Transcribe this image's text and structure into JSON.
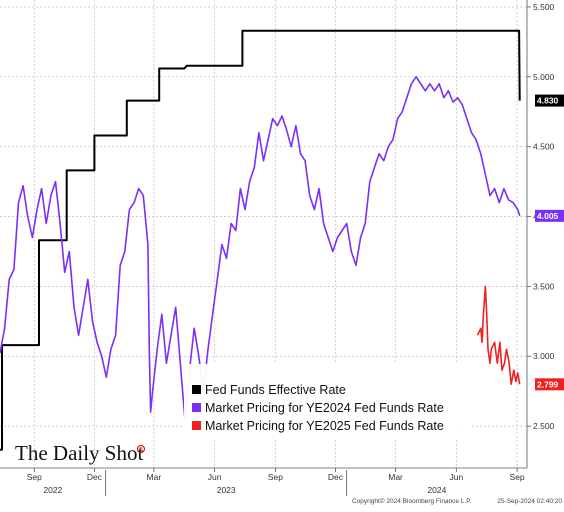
{
  "chart_data": {
    "type": "line",
    "title": "",
    "xlabel": "",
    "ylabel": "",
    "ylim": [
      2.2,
      5.55
    ],
    "y_ticks": [
      "2.500",
      "3.000",
      "3.500",
      "4.000",
      "4.500",
      "5.000",
      "5.500"
    ],
    "x_ticks": [
      {
        "label": "Sep",
        "date": "2022-09-15"
      },
      {
        "label": "Dec",
        "date": "2022-12-15"
      },
      {
        "label": "Mar",
        "date": "2023-03-15"
      },
      {
        "label": "Jun",
        "date": "2023-06-15"
      },
      {
        "label": "Sep",
        "date": "2023-09-15"
      },
      {
        "label": "Dec",
        "date": "2023-12-15"
      },
      {
        "label": "Mar",
        "date": "2024-03-15"
      },
      {
        "label": "Jun",
        "date": "2024-06-15"
      },
      {
        "label": "Sep",
        "date": "2024-09-15"
      }
    ],
    "x_years": [
      "2022",
      "2023",
      "2024"
    ],
    "grid": true,
    "legend_position": "bottom-center",
    "series": [
      {
        "name": "Fed Funds Effective Rate",
        "color": "#000000",
        "last_value": "4.830",
        "points": [
          [
            "2022-07-25",
            2.33
          ],
          [
            "2022-07-28",
            2.33
          ],
          [
            "2022-07-28",
            3.08
          ],
          [
            "2022-09-22",
            3.08
          ],
          [
            "2022-09-22",
            3.83
          ],
          [
            "2022-11-03",
            3.83
          ],
          [
            "2022-11-03",
            4.33
          ],
          [
            "2022-12-15",
            4.33
          ],
          [
            "2022-12-15",
            4.58
          ],
          [
            "2023-02-02",
            4.58
          ],
          [
            "2023-02-02",
            4.83
          ],
          [
            "2023-03-23",
            4.83
          ],
          [
            "2023-03-23",
            5.06
          ],
          [
            "2023-04-30",
            5.06
          ],
          [
            "2023-05-04",
            5.08
          ],
          [
            "2023-07-27",
            5.08
          ],
          [
            "2023-07-27",
            5.33
          ],
          [
            "2024-09-18",
            5.33
          ],
          [
            "2024-09-19",
            4.83
          ]
        ]
      },
      {
        "name": "Market Pricing for YE2024 Fed Funds Rate",
        "color": "#7B2FF7",
        "last_value": "4.005",
        "points": [
          [
            "2022-07-25",
            3.02
          ],
          [
            "2022-08-01",
            3.2
          ],
          [
            "2022-08-08",
            3.55
          ],
          [
            "2022-08-15",
            3.62
          ],
          [
            "2022-08-22",
            4.1
          ],
          [
            "2022-08-29",
            4.22
          ],
          [
            "2022-09-05",
            4.0
          ],
          [
            "2022-09-12",
            3.85
          ],
          [
            "2022-09-19",
            4.05
          ],
          [
            "2022-09-26",
            4.2
          ],
          [
            "2022-10-03",
            3.95
          ],
          [
            "2022-10-10",
            4.15
          ],
          [
            "2022-10-17",
            4.25
          ],
          [
            "2022-10-24",
            3.95
          ],
          [
            "2022-10-31",
            3.6
          ],
          [
            "2022-11-07",
            3.75
          ],
          [
            "2022-11-14",
            3.35
          ],
          [
            "2022-11-21",
            3.15
          ],
          [
            "2022-11-28",
            3.35
          ],
          [
            "2022-12-05",
            3.55
          ],
          [
            "2022-12-12",
            3.25
          ],
          [
            "2022-12-19",
            3.1
          ],
          [
            "2022-12-26",
            3.0
          ],
          [
            "2023-01-02",
            2.85
          ],
          [
            "2023-01-09",
            3.05
          ],
          [
            "2023-01-16",
            3.15
          ],
          [
            "2023-01-23",
            3.65
          ],
          [
            "2023-01-30",
            3.75
          ],
          [
            "2023-02-06",
            4.05
          ],
          [
            "2023-02-13",
            4.1
          ],
          [
            "2023-02-20",
            4.2
          ],
          [
            "2023-02-27",
            4.15
          ],
          [
            "2023-03-06",
            3.8
          ],
          [
            "2023-03-08",
            3.05
          ],
          [
            "2023-03-10",
            2.6
          ],
          [
            "2023-03-13",
            2.75
          ],
          [
            "2023-03-20",
            3.05
          ],
          [
            "2023-03-27",
            3.3
          ],
          [
            "2023-04-03",
            2.95
          ],
          [
            "2023-04-10",
            3.15
          ],
          [
            "2023-04-17",
            3.35
          ],
          [
            "2023-04-24",
            2.95
          ],
          [
            "2023-05-01",
            2.55
          ],
          [
            "2023-05-08",
            2.9
          ],
          [
            "2023-05-15",
            3.2
          ],
          [
            "2023-05-22",
            3.0
          ],
          [
            "2023-05-29",
            2.75
          ],
          [
            "2023-06-05",
            3.05
          ],
          [
            "2023-06-12",
            3.3
          ],
          [
            "2023-06-19",
            3.55
          ],
          [
            "2023-06-26",
            3.8
          ],
          [
            "2023-07-03",
            3.7
          ],
          [
            "2023-07-10",
            3.95
          ],
          [
            "2023-07-17",
            3.9
          ],
          [
            "2023-07-24",
            4.2
          ],
          [
            "2023-07-31",
            4.05
          ],
          [
            "2023-08-07",
            4.25
          ],
          [
            "2023-08-14",
            4.35
          ],
          [
            "2023-08-21",
            4.6
          ],
          [
            "2023-08-28",
            4.4
          ],
          [
            "2023-09-04",
            4.55
          ],
          [
            "2023-09-11",
            4.7
          ],
          [
            "2023-09-18",
            4.65
          ],
          [
            "2023-09-25",
            4.72
          ],
          [
            "2023-10-02",
            4.62
          ],
          [
            "2023-10-09",
            4.5
          ],
          [
            "2023-10-16",
            4.65
          ],
          [
            "2023-10-23",
            4.45
          ],
          [
            "2023-10-30",
            4.4
          ],
          [
            "2023-11-06",
            4.15
          ],
          [
            "2023-11-13",
            4.05
          ],
          [
            "2023-11-20",
            4.2
          ],
          [
            "2023-11-27",
            3.95
          ],
          [
            "2023-12-04",
            3.85
          ],
          [
            "2023-12-11",
            3.75
          ],
          [
            "2023-12-18",
            3.85
          ],
          [
            "2023-12-25",
            3.9
          ],
          [
            "2024-01-01",
            3.95
          ],
          [
            "2024-01-08",
            3.75
          ],
          [
            "2024-01-15",
            3.65
          ],
          [
            "2024-01-22",
            3.85
          ],
          [
            "2024-01-29",
            3.95
          ],
          [
            "2024-02-05",
            4.25
          ],
          [
            "2024-02-12",
            4.35
          ],
          [
            "2024-02-19",
            4.45
          ],
          [
            "2024-02-26",
            4.4
          ],
          [
            "2024-03-04",
            4.5
          ],
          [
            "2024-03-11",
            4.55
          ],
          [
            "2024-03-18",
            4.7
          ],
          [
            "2024-03-25",
            4.75
          ],
          [
            "2024-04-01",
            4.85
          ],
          [
            "2024-04-08",
            4.95
          ],
          [
            "2024-04-15",
            5.0
          ],
          [
            "2024-04-22",
            4.95
          ],
          [
            "2024-04-29",
            4.9
          ],
          [
            "2024-05-06",
            4.95
          ],
          [
            "2024-05-13",
            4.9
          ],
          [
            "2024-05-20",
            4.95
          ],
          [
            "2024-05-27",
            4.85
          ],
          [
            "2024-06-03",
            4.9
          ],
          [
            "2024-06-10",
            4.82
          ],
          [
            "2024-06-17",
            4.85
          ],
          [
            "2024-06-24",
            4.8
          ],
          [
            "2024-07-01",
            4.7
          ],
          [
            "2024-07-08",
            4.6
          ],
          [
            "2024-07-15",
            4.55
          ],
          [
            "2024-07-22",
            4.45
          ],
          [
            "2024-07-29",
            4.3
          ],
          [
            "2024-08-05",
            4.15
          ],
          [
            "2024-08-12",
            4.2
          ],
          [
            "2024-08-19",
            4.1
          ],
          [
            "2024-08-26",
            4.2
          ],
          [
            "2024-09-02",
            4.12
          ],
          [
            "2024-09-09",
            4.1
          ],
          [
            "2024-09-16",
            4.05
          ],
          [
            "2024-09-19",
            4.005
          ]
        ]
      },
      {
        "name": "Market Pricing for YE2025 Fed Funds Rate",
        "color": "#F02020",
        "last_value": "2.799",
        "points": [
          [
            "2024-07-17",
            3.15
          ],
          [
            "2024-07-22",
            3.2
          ],
          [
            "2024-07-24",
            3.1
          ],
          [
            "2024-07-26",
            3.3
          ],
          [
            "2024-07-29",
            3.5
          ],
          [
            "2024-07-31",
            3.3
          ],
          [
            "2024-08-02",
            3.05
          ],
          [
            "2024-08-05",
            2.95
          ],
          [
            "2024-08-07",
            3.05
          ],
          [
            "2024-08-12",
            3.1
          ],
          [
            "2024-08-16",
            2.95
          ],
          [
            "2024-08-20",
            3.1
          ],
          [
            "2024-08-23",
            2.9
          ],
          [
            "2024-08-27",
            2.95
          ],
          [
            "2024-08-30",
            3.05
          ],
          [
            "2024-09-03",
            2.95
          ],
          [
            "2024-09-06",
            2.8
          ],
          [
            "2024-09-10",
            2.9
          ],
          [
            "2024-09-13",
            2.82
          ],
          [
            "2024-09-16",
            2.88
          ],
          [
            "2024-09-19",
            2.799
          ]
        ]
      }
    ]
  },
  "branding": {
    "logo_text": "The Daily Shot",
    "registered_mark": "®",
    "copyright": "Copyright© 2024 Bloomberg Finance L.P.",
    "timestamp": "25-Sep-2024 02:40:20"
  }
}
